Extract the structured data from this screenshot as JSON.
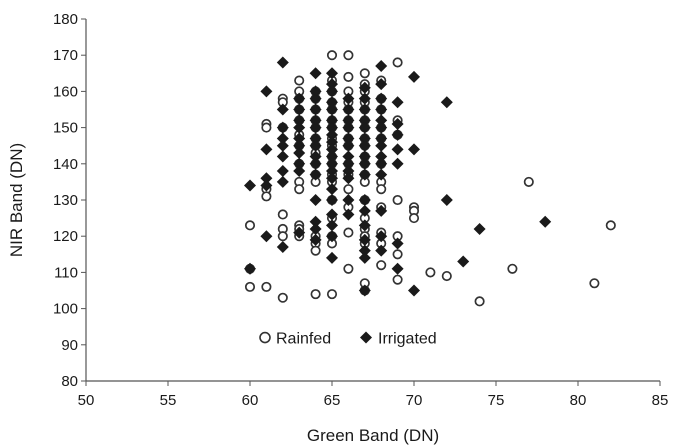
{
  "chart_data": {
    "type": "scatter",
    "xlabel": "Green Band (DN)",
    "ylabel": "NIR Band (DN)",
    "xlim": [
      50,
      85
    ],
    "ylim": [
      80,
      180
    ],
    "xticks": [
      50,
      55,
      60,
      65,
      70,
      75,
      80,
      85
    ],
    "yticks": [
      80,
      90,
      100,
      110,
      120,
      130,
      140,
      150,
      160,
      170,
      180
    ],
    "grid": false,
    "legend_position": "lower-center",
    "series": [
      {
        "name": "Rainfed",
        "marker": "open-circle",
        "color": "#333333",
        "points": [
          [
            60,
            123
          ],
          [
            60,
            111
          ],
          [
            60,
            106
          ],
          [
            61,
            133
          ],
          [
            61,
            131
          ],
          [
            61,
            151
          ],
          [
            61,
            150
          ],
          [
            61,
            106
          ],
          [
            62,
            158
          ],
          [
            62,
            157
          ],
          [
            62,
            150
          ],
          [
            62,
            126
          ],
          [
            62,
            122
          ],
          [
            62,
            120
          ],
          [
            62,
            103
          ],
          [
            63,
            163
          ],
          [
            63,
            160
          ],
          [
            63,
            158
          ],
          [
            63,
            155
          ],
          [
            63,
            152
          ],
          [
            63,
            148
          ],
          [
            63,
            145
          ],
          [
            63,
            140
          ],
          [
            63,
            135
          ],
          [
            63,
            133
          ],
          [
            63,
            123
          ],
          [
            63,
            122
          ],
          [
            63,
            120
          ],
          [
            64,
            160
          ],
          [
            64,
            158
          ],
          [
            64,
            155
          ],
          [
            64,
            152
          ],
          [
            64,
            150
          ],
          [
            64,
            147
          ],
          [
            64,
            145
          ],
          [
            64,
            143
          ],
          [
            64,
            140
          ],
          [
            64,
            137
          ],
          [
            64,
            135
          ],
          [
            64,
            120
          ],
          [
            64,
            118
          ],
          [
            64,
            116
          ],
          [
            64,
            104
          ],
          [
            65,
            170
          ],
          [
            65,
            163
          ],
          [
            65,
            160
          ],
          [
            65,
            157
          ],
          [
            65,
            155
          ],
          [
            65,
            152
          ],
          [
            65,
            150
          ],
          [
            65,
            147
          ],
          [
            65,
            145
          ],
          [
            65,
            142
          ],
          [
            65,
            140
          ],
          [
            65,
            137
          ],
          [
            65,
            135
          ],
          [
            65,
            130
          ],
          [
            65,
            125
          ],
          [
            65,
            120
          ],
          [
            65,
            118
          ],
          [
            65,
            104
          ],
          [
            66,
            170
          ],
          [
            66,
            164
          ],
          [
            66,
            160
          ],
          [
            66,
            157
          ],
          [
            66,
            155
          ],
          [
            66,
            152
          ],
          [
            66,
            150
          ],
          [
            66,
            147
          ],
          [
            66,
            145
          ],
          [
            66,
            140
          ],
          [
            66,
            137
          ],
          [
            66,
            133
          ],
          [
            66,
            128
          ],
          [
            66,
            121
          ],
          [
            66,
            111
          ],
          [
            67,
            165
          ],
          [
            67,
            162
          ],
          [
            67,
            160
          ],
          [
            67,
            157
          ],
          [
            67,
            155
          ],
          [
            67,
            152
          ],
          [
            67,
            150
          ],
          [
            67,
            147
          ],
          [
            67,
            145
          ],
          [
            67,
            142
          ],
          [
            67,
            140
          ],
          [
            67,
            137
          ],
          [
            67,
            135
          ],
          [
            67,
            130
          ],
          [
            67,
            125
          ],
          [
            67,
            122
          ],
          [
            67,
            120
          ],
          [
            67,
            118
          ],
          [
            67,
            107
          ],
          [
            67,
            105
          ],
          [
            68,
            163
          ],
          [
            68,
            158
          ],
          [
            68,
            155
          ],
          [
            68,
            150
          ],
          [
            68,
            147
          ],
          [
            68,
            140
          ],
          [
            68,
            135
          ],
          [
            68,
            133
          ],
          [
            68,
            128
          ],
          [
            68,
            121
          ],
          [
            68,
            118
          ],
          [
            68,
            112
          ],
          [
            69,
            168
          ],
          [
            69,
            152
          ],
          [
            69,
            148
          ],
          [
            69,
            130
          ],
          [
            69,
            120
          ],
          [
            69,
            115
          ],
          [
            69,
            108
          ],
          [
            70,
            128
          ],
          [
            70,
            127
          ],
          [
            70,
            125
          ],
          [
            71,
            110
          ],
          [
            72,
            109
          ],
          [
            74,
            102
          ],
          [
            76,
            111
          ],
          [
            77,
            135
          ],
          [
            81,
            107
          ],
          [
            82,
            123
          ]
        ]
      },
      {
        "name": "Irrigated",
        "marker": "filled-diamond",
        "color": "#1a1a1a",
        "points": [
          [
            60,
            134
          ],
          [
            60,
            111
          ],
          [
            61,
            160
          ],
          [
            61,
            144
          ],
          [
            61,
            136
          ],
          [
            61,
            134
          ],
          [
            61,
            120
          ],
          [
            62,
            168
          ],
          [
            62,
            155
          ],
          [
            62,
            150
          ],
          [
            62,
            147
          ],
          [
            62,
            145
          ],
          [
            62,
            142
          ],
          [
            62,
            138
          ],
          [
            62,
            135
          ],
          [
            62,
            117
          ],
          [
            63,
            158
          ],
          [
            63,
            155
          ],
          [
            63,
            152
          ],
          [
            63,
            150
          ],
          [
            63,
            147
          ],
          [
            63,
            145
          ],
          [
            63,
            143
          ],
          [
            63,
            140
          ],
          [
            63,
            138
          ],
          [
            63,
            121
          ],
          [
            64,
            165
          ],
          [
            64,
            160
          ],
          [
            64,
            158
          ],
          [
            64,
            155
          ],
          [
            64,
            152
          ],
          [
            64,
            150
          ],
          [
            64,
            147
          ],
          [
            64,
            145
          ],
          [
            64,
            142
          ],
          [
            64,
            140
          ],
          [
            64,
            137
          ],
          [
            64,
            130
          ],
          [
            64,
            124
          ],
          [
            64,
            122
          ],
          [
            64,
            119
          ],
          [
            65,
            165
          ],
          [
            65,
            162
          ],
          [
            65,
            160
          ],
          [
            65,
            157
          ],
          [
            65,
            155
          ],
          [
            65,
            152
          ],
          [
            65,
            150
          ],
          [
            65,
            148
          ],
          [
            65,
            146
          ],
          [
            65,
            144
          ],
          [
            65,
            142
          ],
          [
            65,
            140
          ],
          [
            65,
            138
          ],
          [
            65,
            136
          ],
          [
            65,
            133
          ],
          [
            65,
            130
          ],
          [
            65,
            126
          ],
          [
            65,
            123
          ],
          [
            65,
            120
          ],
          [
            65,
            114
          ],
          [
            66,
            158
          ],
          [
            66,
            155
          ],
          [
            66,
            152
          ],
          [
            66,
            150
          ],
          [
            66,
            147
          ],
          [
            66,
            145
          ],
          [
            66,
            142
          ],
          [
            66,
            140
          ],
          [
            66,
            138
          ],
          [
            66,
            136
          ],
          [
            66,
            130
          ],
          [
            66,
            126
          ],
          [
            67,
            161
          ],
          [
            67,
            158
          ],
          [
            67,
            155
          ],
          [
            67,
            152
          ],
          [
            67,
            150
          ],
          [
            67,
            147
          ],
          [
            67,
            145
          ],
          [
            67,
            142
          ],
          [
            67,
            140
          ],
          [
            67,
            137
          ],
          [
            67,
            130
          ],
          [
            67,
            127
          ],
          [
            67,
            123
          ],
          [
            67,
            119
          ],
          [
            67,
            116
          ],
          [
            67,
            114
          ],
          [
            67,
            105
          ],
          [
            68,
            167
          ],
          [
            68,
            162
          ],
          [
            68,
            158
          ],
          [
            68,
            155
          ],
          [
            68,
            152
          ],
          [
            68,
            150
          ],
          [
            68,
            147
          ],
          [
            68,
            145
          ],
          [
            68,
            142
          ],
          [
            68,
            140
          ],
          [
            68,
            137
          ],
          [
            68,
            127
          ],
          [
            68,
            120
          ],
          [
            68,
            116
          ],
          [
            69,
            157
          ],
          [
            69,
            151
          ],
          [
            69,
            148
          ],
          [
            69,
            144
          ],
          [
            69,
            140
          ],
          [
            69,
            118
          ],
          [
            69,
            111
          ],
          [
            70,
            164
          ],
          [
            70,
            144
          ],
          [
            70,
            105
          ],
          [
            72,
            157
          ],
          [
            72,
            130
          ],
          [
            73,
            113
          ],
          [
            74,
            122
          ],
          [
            78,
            124
          ]
        ]
      }
    ]
  }
}
